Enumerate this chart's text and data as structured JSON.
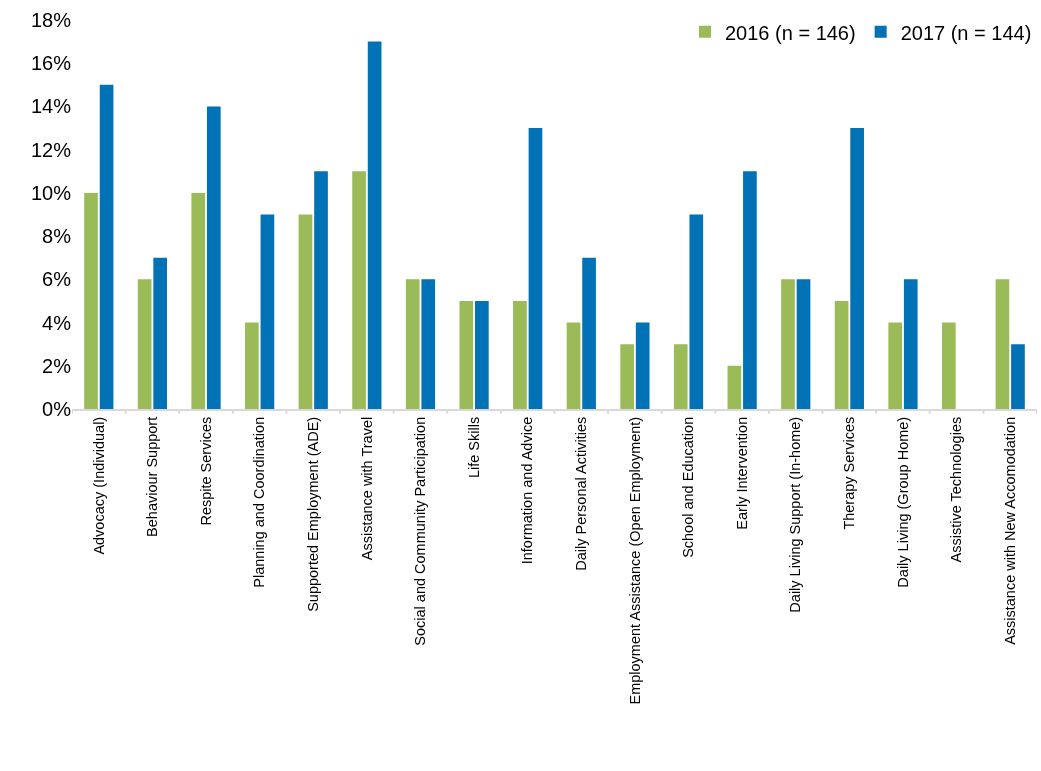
{
  "chart_data": {
    "type": "bar",
    "categories": [
      "Advocacy (Individual)",
      "Behaviour Support",
      "Respite Services",
      "Planning and Coordination",
      "Supported Employment (ADE)",
      "Assistance with Travel",
      "Social and Community Participation",
      "Life Skills",
      "Information and Advice",
      "Daily Personal Activities",
      "Employment Assistance (Open Employment)",
      "School and Education",
      "Early Intervention",
      "Daily Living Support (In-home)",
      "Therapy Services",
      "Daily Living (Group Home)",
      "Assistive Technologies",
      "Assistance with New Accomodation"
    ],
    "series": [
      {
        "name": "2016 (n = 146)",
        "color": "#9bbb59",
        "values": [
          10,
          6,
          10,
          4,
          9,
          11,
          6,
          5,
          5,
          4,
          3,
          3,
          2,
          6,
          5,
          4,
          4,
          6
        ]
      },
      {
        "name": "2017 (n = 144)",
        "color": "#0072b5",
        "values": [
          15,
          7,
          14,
          9,
          11,
          17,
          6,
          5,
          13,
          7,
          4,
          9,
          11,
          6,
          13,
          6,
          0,
          3
        ]
      }
    ],
    "ylim": [
      0,
      18
    ],
    "yticks": [
      {
        "value": 0,
        "label": "0%"
      },
      {
        "value": 2,
        "label": "2%"
      },
      {
        "value": 4,
        "label": "4%"
      },
      {
        "value": 6,
        "label": "6%"
      },
      {
        "value": 8,
        "label": "8%"
      },
      {
        "value": 10,
        "label": "10%"
      },
      {
        "value": 12,
        "label": "12%"
      },
      {
        "value": 14,
        "label": "14%"
      },
      {
        "value": 16,
        "label": "16%"
      },
      {
        "value": 18,
        "label": "18%"
      }
    ],
    "grid": false,
    "legend": "top right"
  }
}
